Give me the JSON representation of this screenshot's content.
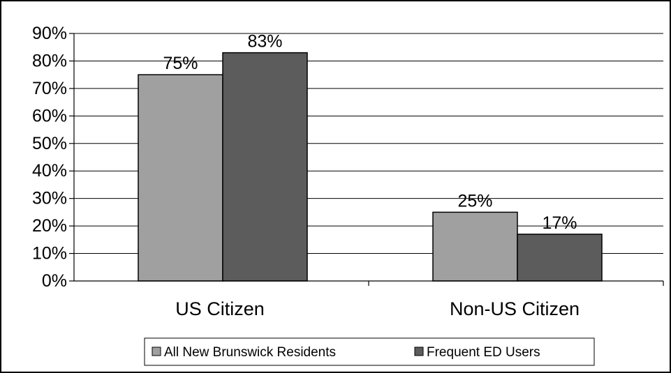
{
  "chart_data": {
    "type": "bar",
    "title": "",
    "xlabel": "",
    "ylabel": "",
    "categories": [
      "US Citizen",
      "Non-US Citizen"
    ],
    "series": [
      {
        "name": "All New Brunswick Residents",
        "values": [
          75,
          25
        ],
        "labels": [
          "75%",
          "25%"
        ],
        "color": "#a0a0a0"
      },
      {
        "name": "Frequent ED Users",
        "values": [
          83,
          17
        ],
        "labels": [
          "83%",
          "17%"
        ],
        "color": "#5c5c5c"
      }
    ],
    "ylim": [
      0,
      90
    ],
    "yticks": [
      0,
      10,
      20,
      30,
      40,
      50,
      60,
      70,
      80,
      90
    ],
    "ytick_labels": [
      "0%",
      "10%",
      "20%",
      "30%",
      "40%",
      "50%",
      "60%",
      "70%",
      "80%",
      "90%"
    ],
    "grid": true,
    "legend_position": "bottom"
  }
}
